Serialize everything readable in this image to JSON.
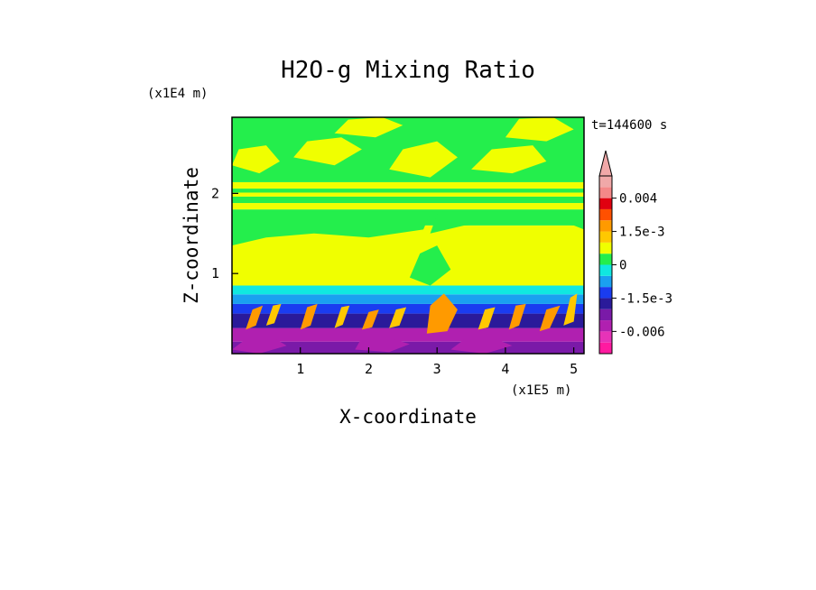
{
  "chart_data": {
    "type": "heatmap",
    "title": "H2O-g Mixing Ratio",
    "xlabel": "X-coordinate",
    "ylabel": "Z-coordinate",
    "x_unit": "(x1E5 m)",
    "y_unit": "(x1E4 m)",
    "time_label": "t=144600 s",
    "xlim": [
      0,
      5.15
    ],
    "ylim": [
      0,
      2.95
    ],
    "x_ticks": [
      {
        "value": 1,
        "label": "1"
      },
      {
        "value": 2,
        "label": "2"
      },
      {
        "value": 3,
        "label": "3"
      },
      {
        "value": 4,
        "label": "4"
      },
      {
        "value": 5,
        "label": "5"
      }
    ],
    "y_ticks": [
      {
        "value": 1,
        "label": "1"
      },
      {
        "value": 2,
        "label": "2"
      }
    ],
    "colorbar": {
      "levels": [
        {
          "value": -0.008,
          "color": "#ff1aa0"
        },
        {
          "value": -0.007,
          "color": "#e633b8"
        },
        {
          "value": -0.006,
          "color": "#b020b0"
        },
        {
          "value": -0.0045,
          "color": "#7a1aa8"
        },
        {
          "value": -0.002,
          "color": "#2a1a9a"
        },
        {
          "value": -0.0015,
          "color": "#1a3cf0"
        },
        {
          "value": -0.001,
          "color": "#1aa0f0"
        },
        {
          "value": -0.0005,
          "color": "#10e8e0"
        },
        {
          "value": 0,
          "color": "#24ee4c"
        },
        {
          "value": 0.0005,
          "color": "#f0ff00"
        },
        {
          "value": 0.001,
          "color": "#ffc800"
        },
        {
          "value": 0.0015,
          "color": "#ff9a00"
        },
        {
          "value": 0.002,
          "color": "#ff5000"
        },
        {
          "value": 0.003,
          "color": "#e00010"
        },
        {
          "value": 0.004,
          "color": "#f48888"
        },
        {
          "value": 0.005,
          "color": "#f0a8a8"
        }
      ],
      "tick_labels": [
        {
          "value": 0.004,
          "label": "0.004"
        },
        {
          "value": 0.0015,
          "label": "1.5e-3"
        },
        {
          "value": 0,
          "label": "0"
        },
        {
          "value": -0.0015,
          "label": "-1.5e-3"
        },
        {
          "value": -0.006,
          "label": "-0.006"
        }
      ]
    },
    "bands": [
      {
        "z_bottom": 0.0,
        "z_top": 0.15,
        "color": "#7a1aa8"
      },
      {
        "z_bottom": 0.15,
        "z_top": 0.32,
        "color": "#b020b0"
      },
      {
        "z_bottom": 0.32,
        "z_top": 0.5,
        "color": "#2a1a9a"
      },
      {
        "z_bottom": 0.5,
        "z_top": 0.62,
        "color": "#1a3cf0"
      },
      {
        "z_bottom": 0.62,
        "z_top": 0.74,
        "color": "#1aa0f0"
      },
      {
        "z_bottom": 0.74,
        "z_top": 0.85,
        "color": "#10e8e0"
      },
      {
        "z_bottom": 0.85,
        "z_top": 1.6,
        "color": "#f0ff00"
      },
      {
        "z_bottom": 1.6,
        "z_top": 1.8,
        "color": "#24ee4c"
      },
      {
        "z_bottom": 1.8,
        "z_top": 1.88,
        "color": "#f0ff00"
      },
      {
        "z_bottom": 1.88,
        "z_top": 1.96,
        "color": "#24ee4c"
      },
      {
        "z_bottom": 1.96,
        "z_top": 2.01,
        "color": "#f0ff00"
      },
      {
        "z_bottom": 2.01,
        "z_top": 2.06,
        "color": "#24ee4c"
      },
      {
        "z_bottom": 2.06,
        "z_top": 2.14,
        "color": "#f0ff00"
      },
      {
        "z_bottom": 2.14,
        "z_top": 2.95,
        "color": "#24ee4c"
      }
    ],
    "patches": [
      {
        "x": [
          0.0,
          0.5,
          1.2,
          2.0,
          2.8,
          2.9,
          2.3,
          1.5,
          0.6,
          0.0
        ],
        "z": [
          1.35,
          1.45,
          1.5,
          1.45,
          1.55,
          1.75,
          1.72,
          1.7,
          1.7,
          1.65
        ],
        "color": "#24ee4c"
      },
      {
        "x": [
          2.9,
          3.4,
          4.2,
          5.0,
          5.15,
          5.15,
          4.3,
          3.6,
          3.0
        ],
        "z": [
          1.5,
          1.6,
          1.65,
          1.6,
          1.55,
          1.75,
          1.78,
          1.76,
          1.74
        ],
        "color": "#24ee4c"
      },
      {
        "x": [
          2.6,
          2.9,
          3.2,
          3.0,
          2.75
        ],
        "z": [
          0.95,
          0.85,
          1.05,
          1.35,
          1.25
        ],
        "color": "#24ee4c"
      },
      {
        "x": [
          0.0,
          0.4,
          0.7,
          0.5,
          0.1
        ],
        "z": [
          2.35,
          2.25,
          2.4,
          2.6,
          2.55
        ],
        "color": "#f0ff00"
      },
      {
        "x": [
          0.9,
          1.5,
          1.9,
          1.6,
          1.1
        ],
        "z": [
          2.45,
          2.35,
          2.55,
          2.7,
          2.65
        ],
        "color": "#f0ff00"
      },
      {
        "x": [
          2.3,
          2.9,
          3.3,
          3.0,
          2.5
        ],
        "z": [
          2.3,
          2.2,
          2.45,
          2.65,
          2.55
        ],
        "color": "#f0ff00"
      },
      {
        "x": [
          3.5,
          4.1,
          4.6,
          4.4,
          3.8
        ],
        "z": [
          2.3,
          2.25,
          2.4,
          2.6,
          2.55
        ],
        "color": "#f0ff00"
      },
      {
        "x": [
          1.5,
          2.1,
          2.5,
          2.2,
          1.7
        ],
        "z": [
          2.75,
          2.7,
          2.85,
          2.95,
          2.92
        ],
        "color": "#f0ff00"
      },
      {
        "x": [
          4.0,
          4.6,
          5.0,
          4.7,
          4.2
        ],
        "z": [
          2.7,
          2.65,
          2.8,
          2.95,
          2.93
        ],
        "color": "#f0ff00"
      },
      {
        "x": [
          0.2,
          0.35,
          0.45,
          0.3
        ],
        "z": [
          0.3,
          0.35,
          0.6,
          0.55
        ],
        "color": "#ff9a00"
      },
      {
        "x": [
          0.5,
          0.62,
          0.72,
          0.6
        ],
        "z": [
          0.35,
          0.38,
          0.62,
          0.6
        ],
        "color": "#ffc800"
      },
      {
        "x": [
          1.0,
          1.15,
          1.25,
          1.1
        ],
        "z": [
          0.3,
          0.35,
          0.62,
          0.58
        ],
        "color": "#ff9a00"
      },
      {
        "x": [
          1.5,
          1.62,
          1.72,
          1.6
        ],
        "z": [
          0.32,
          0.36,
          0.6,
          0.58
        ],
        "color": "#ffc800"
      },
      {
        "x": [
          1.9,
          2.05,
          2.15,
          2.0
        ],
        "z": [
          0.3,
          0.33,
          0.55,
          0.52
        ],
        "color": "#ff9a00"
      },
      {
        "x": [
          2.3,
          2.45,
          2.55,
          2.4
        ],
        "z": [
          0.32,
          0.35,
          0.58,
          0.55
        ],
        "color": "#ffc800"
      },
      {
        "x": [
          2.85,
          3.15,
          3.3,
          3.1,
          2.9
        ],
        "z": [
          0.25,
          0.28,
          0.55,
          0.75,
          0.6
        ],
        "color": "#ff9a00"
      },
      {
        "x": [
          3.6,
          3.75,
          3.85,
          3.7
        ],
        "z": [
          0.3,
          0.33,
          0.58,
          0.55
        ],
        "color": "#ffc800"
      },
      {
        "x": [
          4.05,
          4.2,
          4.3,
          4.15
        ],
        "z": [
          0.3,
          0.35,
          0.62,
          0.6
        ],
        "color": "#ff9a00"
      },
      {
        "x": [
          4.5,
          4.65,
          4.8,
          4.6
        ],
        "z": [
          0.28,
          0.32,
          0.6,
          0.55
        ],
        "color": "#ff9a00"
      },
      {
        "x": [
          4.85,
          5.0,
          5.05,
          4.95
        ],
        "z": [
          0.35,
          0.4,
          0.75,
          0.7
        ],
        "color": "#ffc800"
      },
      {
        "x": [
          0.0,
          0.4,
          0.8,
          0.6,
          0.2
        ],
        "z": [
          0.05,
          0.0,
          0.1,
          0.2,
          0.18
        ],
        "color": "#b020b0"
      },
      {
        "x": [
          1.8,
          2.3,
          2.6,
          2.2,
          1.9
        ],
        "z": [
          0.05,
          0.02,
          0.12,
          0.22,
          0.2
        ],
        "color": "#b020b0"
      },
      {
        "x": [
          3.2,
          3.7,
          4.1,
          3.8,
          3.4
        ],
        "z": [
          0.05,
          0.0,
          0.1,
          0.2,
          0.18
        ],
        "color": "#b020b0"
      }
    ]
  }
}
